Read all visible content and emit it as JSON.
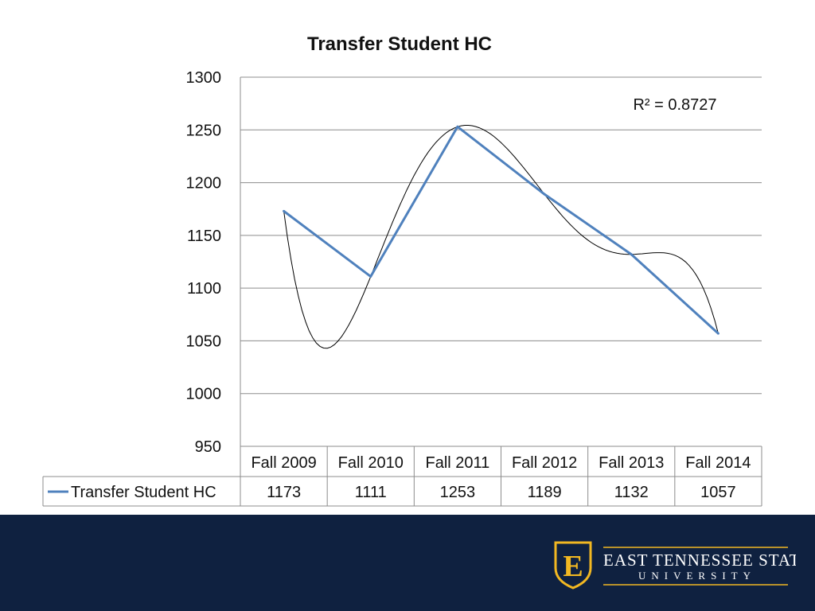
{
  "chart_data": {
    "type": "line",
    "title": "Transfer Student HC",
    "categories": [
      "Fall 2009",
      "Fall 2010",
      "Fall 2011",
      "Fall 2012",
      "Fall 2013",
      "Fall 2014"
    ],
    "series": [
      {
        "name": "Transfer Student HC",
        "values": [
          1173,
          1111,
          1253,
          1189,
          1132,
          1057
        ],
        "color": "#4f81bd"
      }
    ],
    "trendline": {
      "type": "polynomial",
      "r_squared_label": "R² = 0.8727",
      "color": "#000000"
    },
    "ylim": [
      950,
      1300
    ],
    "yticks": [
      950,
      1000,
      1050,
      1100,
      1150,
      1200,
      1250,
      1300
    ],
    "grid": true,
    "legend": "data-table"
  },
  "branding": {
    "logo_line1": "EAST TENNESSEE STATE",
    "logo_line2": "UNIVERSITY",
    "logo_letter": "E",
    "logo_icon": "etsu-shield-icon",
    "footer_color": "#0f2140",
    "accent_color": "#f2b822"
  }
}
